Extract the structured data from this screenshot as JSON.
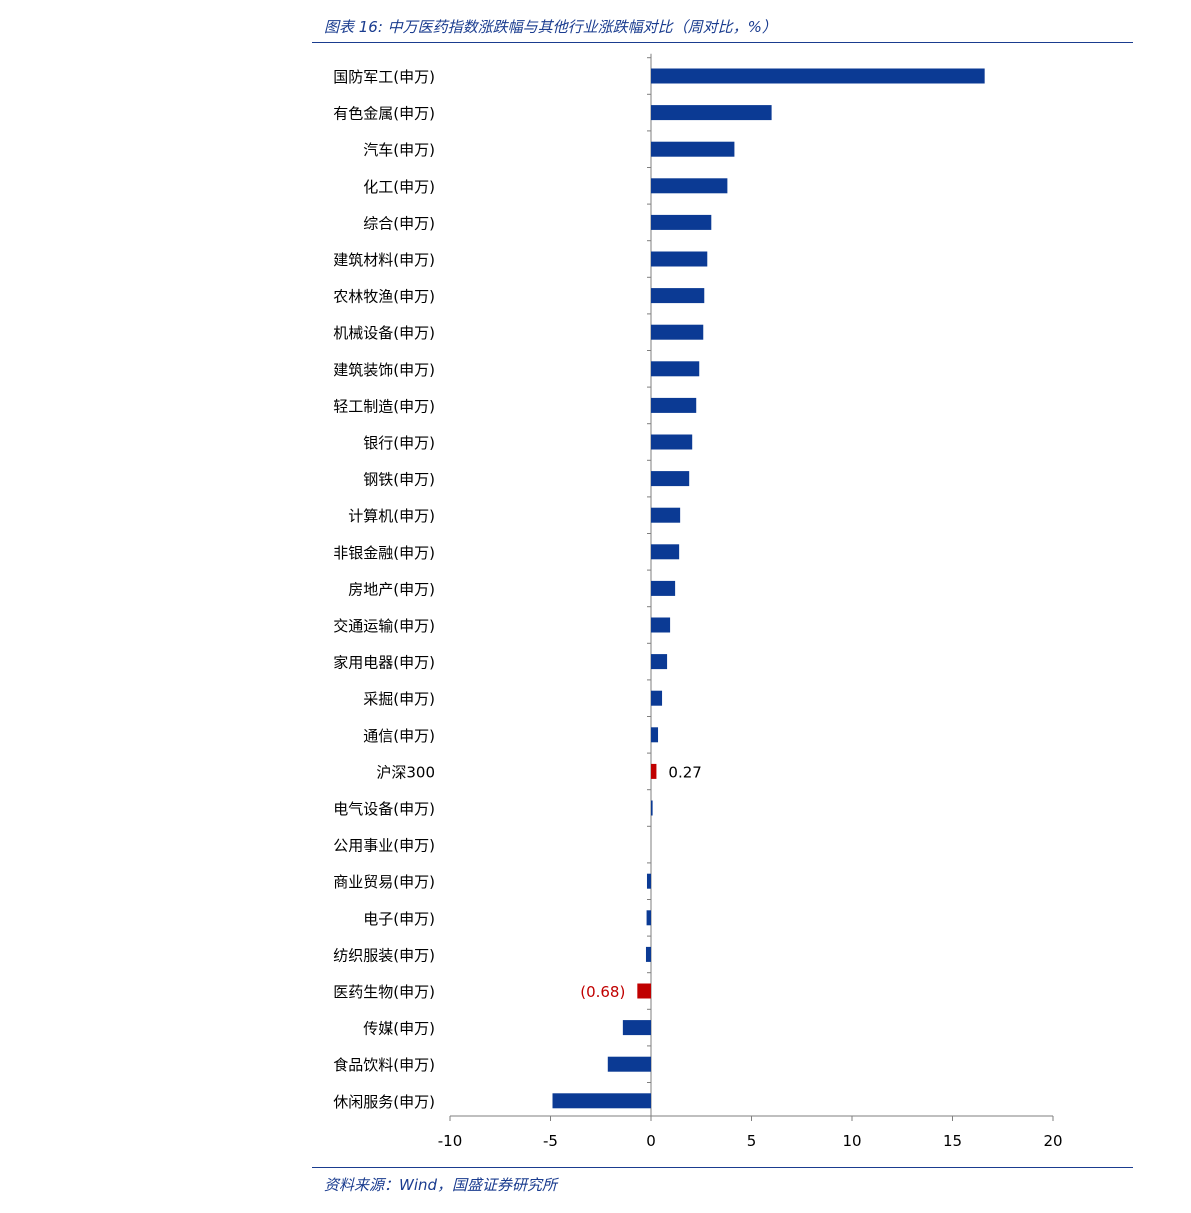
{
  "caption": "图表 16:  中万医药指数涨跌幅与其他行业涨跌幅对比（周对比，%）",
  "source": "资料来源：Wind，国盛证券研究所",
  "colors": {
    "bar": "#0b3a94",
    "highlight": "#c00000",
    "axis": "#7f7f7f",
    "caption": "#1a3c8f"
  },
  "chart_data": {
    "type": "bar",
    "orientation": "horizontal",
    "title": "",
    "xlabel": "",
    "ylabel": "",
    "xlim": [
      -10,
      20
    ],
    "xticks": [
      "-10",
      "-5",
      "0",
      "5",
      "10",
      "15",
      "20"
    ],
    "grid": false,
    "categories": [
      "国防军工(申万)",
      "有色金属(申万)",
      "汽车(申万)",
      "化工(申万)",
      "综合(申万)",
      "建筑材料(申万)",
      "农林牧渔(申万)",
      "机械设备(申万)",
      "建筑装饰(申万)",
      "轻工制造(申万)",
      "银行(申万)",
      "钢铁(申万)",
      "计算机(申万)",
      "非银金融(申万)",
      "房地产(申万)",
      "交通运输(申万)",
      "家用电器(申万)",
      "采掘(申万)",
      "通信(申万)",
      "沪深300",
      "电气设备(申万)",
      "公用事业(申万)",
      "商业贸易(申万)",
      "电子(申万)",
      "纺织服装(申万)",
      "医药生物(申万)",
      "传媒(申万)",
      "食品饮料(申万)",
      "休闲服务(申万)"
    ],
    "values": [
      16.6,
      6.0,
      4.15,
      3.8,
      3.0,
      2.8,
      2.65,
      2.6,
      2.4,
      2.25,
      2.05,
      1.9,
      1.45,
      1.4,
      1.2,
      0.95,
      0.8,
      0.55,
      0.35,
      0.27,
      0.08,
      0.0,
      -0.2,
      -0.22,
      -0.25,
      -0.68,
      -1.4,
      -2.15,
      -4.9
    ],
    "highlighted": [
      {
        "category": "沪深300",
        "label": "0.27"
      },
      {
        "category": "医药生物(申万)",
        "label": "(0.68)"
      }
    ]
  }
}
